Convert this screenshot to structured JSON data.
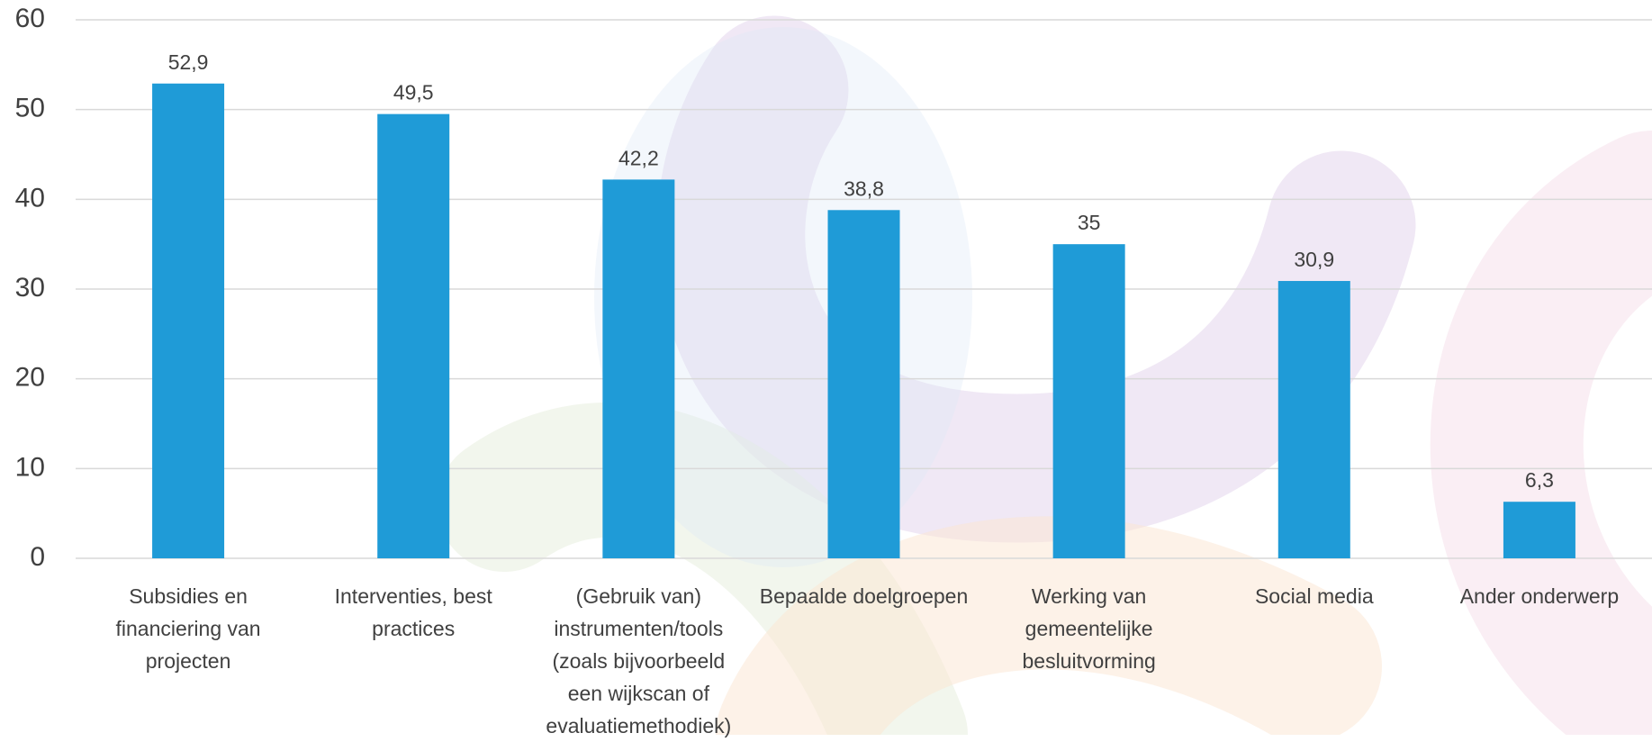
{
  "chart_data": {
    "type": "bar",
    "categories": [
      "Subsidies en financiering van projecten",
      "Interventies, best practices",
      "(Gebruik van) instrumenten/tools (zoals bijvoorbeeld een wijkscan of evaluatiemethodiek)",
      "Bepaalde doelgroepen",
      "Werking van gemeentelijke besluitvorming",
      "Social media",
      "Ander onderwerp"
    ],
    "values": [
      52.9,
      49.5,
      42.2,
      38.8,
      35,
      30.9,
      6.3
    ],
    "value_labels": [
      "52,9",
      "49,5",
      "42,2",
      "38,8",
      "35",
      "30,9",
      "6,3"
    ],
    "color": "#1f9bd7",
    "ylim": [
      0,
      60
    ],
    "yticks": [
      0,
      10,
      20,
      30,
      40,
      50,
      60
    ],
    "grid": true
  }
}
